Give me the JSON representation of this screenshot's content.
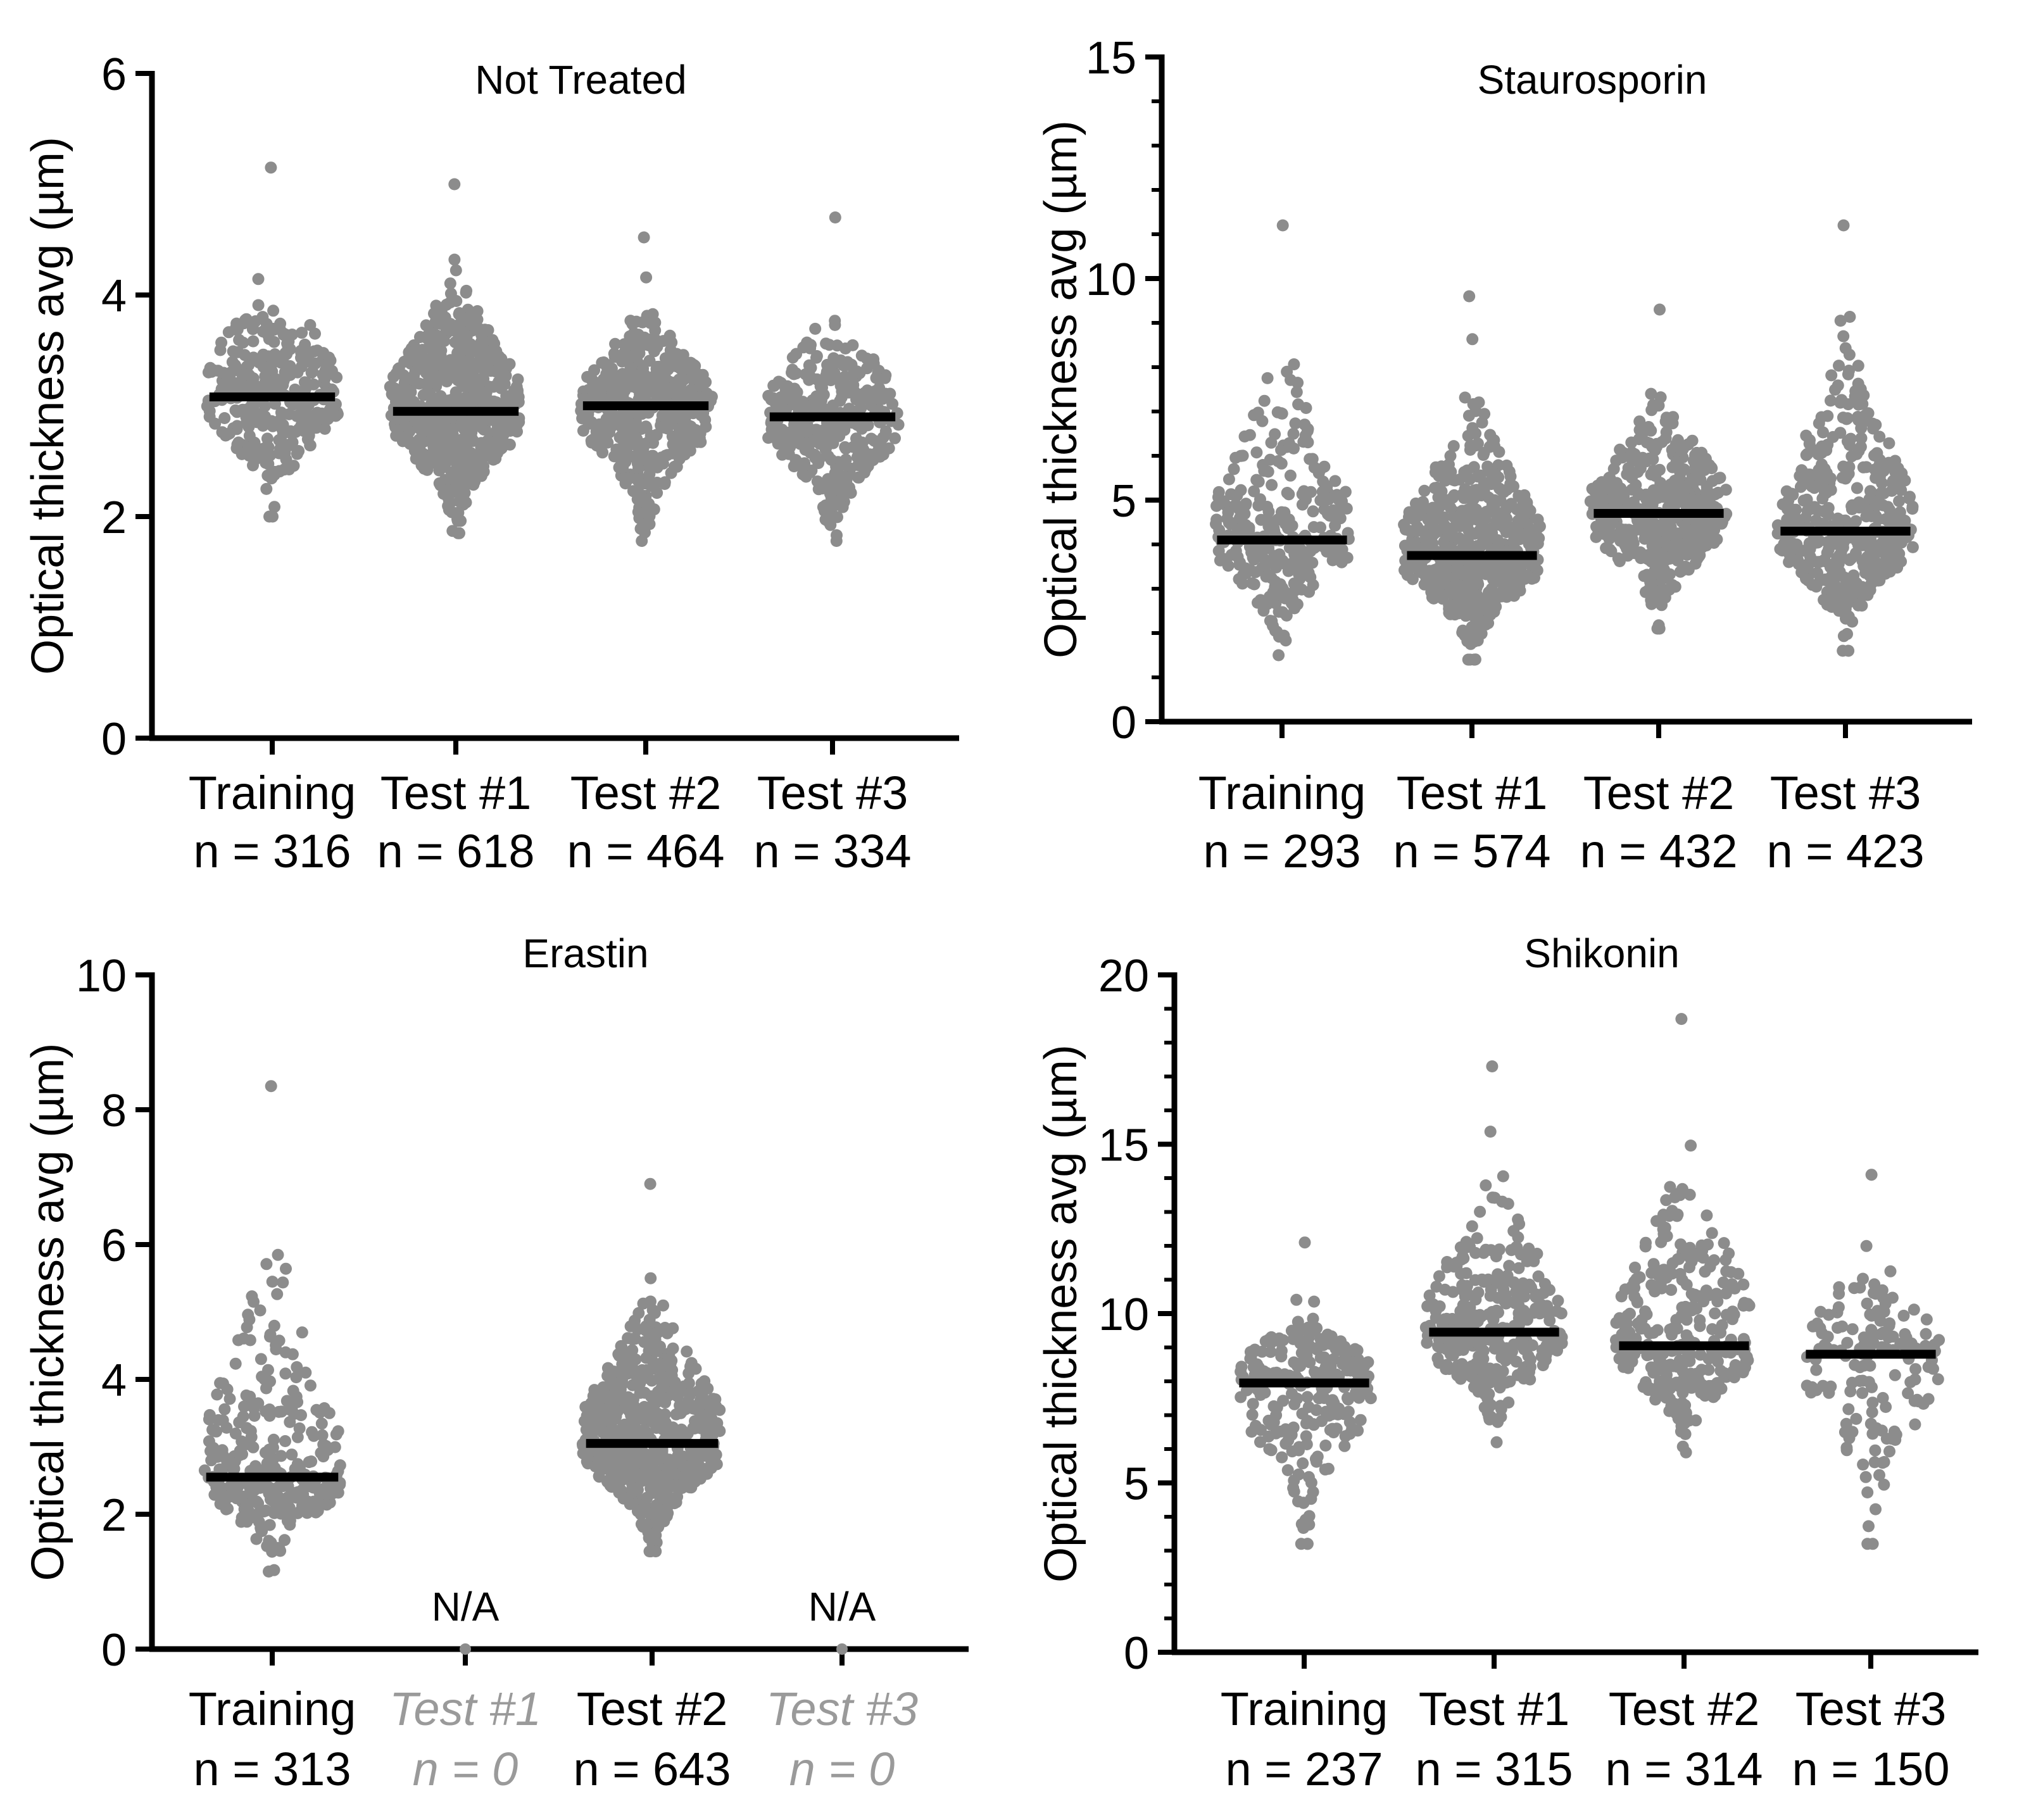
{
  "chart_data": [
    {
      "type": "scatter",
      "subtype": "beeswarm-with-mean",
      "title": "Not Treated",
      "ylabel": "Optical thickness avg (µm)",
      "ylim": [
        0,
        6
      ],
      "yticks": [
        "0",
        "2",
        "4",
        "6"
      ],
      "groups": [
        {
          "label": "Training",
          "n_label": "n = 316",
          "n": 316,
          "mean": 3.08,
          "min": 2.0,
          "max": 5.15,
          "available": true
        },
        {
          "label": "Test #1",
          "n_label": "n = 618",
          "n": 618,
          "mean": 2.95,
          "min": 1.85,
          "max": 5.0,
          "available": true
        },
        {
          "label": "Test #2",
          "n_label": "n = 464",
          "n": 464,
          "mean": 3.0,
          "min": 1.78,
          "max": 4.52,
          "available": true
        },
        {
          "label": "Test #3",
          "n_label": "n = 334",
          "n": 334,
          "mean": 2.9,
          "min": 1.78,
          "max": 4.7,
          "available": true
        }
      ]
    },
    {
      "type": "scatter",
      "subtype": "beeswarm-with-mean",
      "title": "Staurosporin",
      "ylabel": "Optical thickness avg (µm)",
      "ylim": [
        0,
        15
      ],
      "yticks": [
        "0",
        "5",
        "10",
        "15"
      ],
      "groups": [
        {
          "label": "Training",
          "n_label": "n = 293",
          "n": 293,
          "mean": 4.1,
          "min": 1.5,
          "max": 11.2,
          "available": true
        },
        {
          "label": "Test #1",
          "n_label": "n = 574",
          "n": 574,
          "mean": 3.75,
          "min": 1.4,
          "max": 9.6,
          "available": true
        },
        {
          "label": "Test #2",
          "n_label": "n = 432",
          "n": 432,
          "mean": 4.7,
          "min": 2.1,
          "max": 9.3,
          "available": true
        },
        {
          "label": "Test #3",
          "n_label": "n = 423",
          "n": 423,
          "mean": 4.3,
          "min": 1.6,
          "max": 11.2,
          "available": true
        }
      ]
    },
    {
      "type": "scatter",
      "subtype": "beeswarm-with-mean",
      "title": "Erastin",
      "ylabel": "Optical thickness avg (µm)",
      "ylim": [
        0,
        10
      ],
      "yticks": [
        "0",
        "2",
        "4",
        "6",
        "8",
        "10"
      ],
      "groups": [
        {
          "label": "Training",
          "n_label": "n = 313",
          "n": 313,
          "mean": 2.55,
          "min": 1.15,
          "max": 8.35,
          "available": true
        },
        {
          "label": "Test #1",
          "n_label": "n = 0",
          "n": 0,
          "mean": null,
          "available": false,
          "annotation": "N/A"
        },
        {
          "label": "Test #2",
          "n_label": "n = 643",
          "n": 643,
          "mean": 3.05,
          "min": 1.45,
          "max": 6.9,
          "available": true
        },
        {
          "label": "Test #3",
          "n_label": "n = 0",
          "n": 0,
          "mean": null,
          "available": false,
          "annotation": "N/A"
        }
      ]
    },
    {
      "type": "scatter",
      "subtype": "beeswarm-with-mean",
      "title": "Shikonin",
      "ylabel": "Optical thickness avg (µm)",
      "ylim": [
        0,
        20
      ],
      "yticks": [
        "0",
        "5",
        "10",
        "15",
        "20"
      ],
      "groups": [
        {
          "label": "Training",
          "n_label": "n = 237",
          "n": 237,
          "mean": 7.95,
          "min": 3.2,
          "max": 12.1,
          "available": true
        },
        {
          "label": "Test #1",
          "n_label": "n = 315",
          "n": 315,
          "mean": 9.45,
          "min": 6.2,
          "max": 17.3,
          "available": true
        },
        {
          "label": "Test #2",
          "n_label": "n = 314",
          "n": 314,
          "mean": 9.05,
          "min": 5.9,
          "max": 18.7,
          "available": true
        },
        {
          "label": "Test #3",
          "n_label": "n = 150",
          "n": 150,
          "mean": 8.8,
          "min": 3.2,
          "max": 14.1,
          "available": true
        }
      ]
    }
  ],
  "colors": {
    "points": "#8c8c8c",
    "mean_line": "#000000",
    "axis": "#000000",
    "missing_label": "#9a9a9a"
  }
}
